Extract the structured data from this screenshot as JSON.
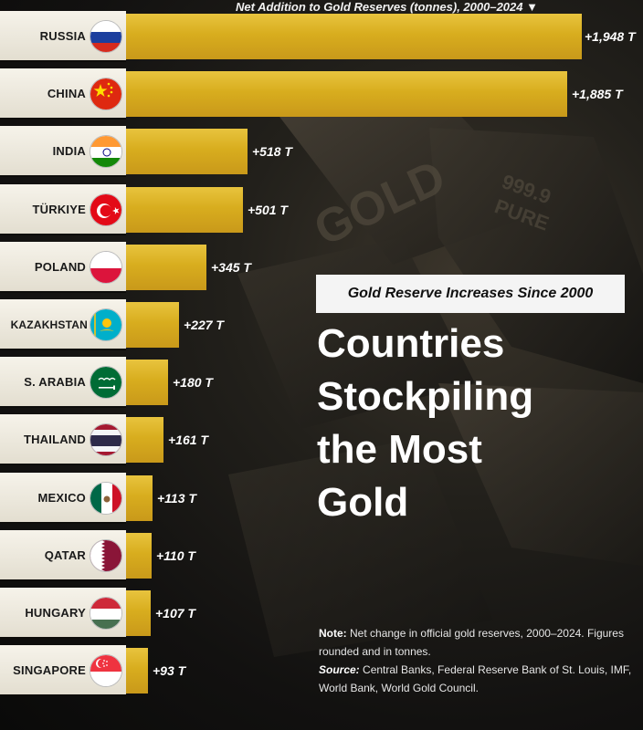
{
  "chart_data": {
    "type": "bar",
    "orientation": "horizontal",
    "title": "Countries Stockpiling the Most Gold",
    "title_lines": [
      "Countries",
      "Stockpiling",
      "the Most",
      "Gold"
    ],
    "subtitle": "Gold Reserve Increases Since 2000",
    "header": "Net Addition to Gold Reserves (tonnes), 2000–2024 ▼",
    "unit": "T",
    "xlim": [
      0,
      1948
    ],
    "categories": [
      "RUSSIA",
      "CHINA",
      "INDIA",
      "TÜRKIYE",
      "POLAND",
      "KAZAKHSTAN",
      "S. ARABIA",
      "THAILAND",
      "MEXICO",
      "QATAR",
      "HUNGARY",
      "SINGAPORE"
    ],
    "values": [
      1948,
      1885,
      518,
      501,
      345,
      227,
      180,
      161,
      113,
      110,
      107,
      93
    ],
    "value_labels": [
      "+1,948 T",
      "+1,885 T",
      "+518 T",
      "+501 T",
      "+345 T",
      "+227 T",
      "+180 T",
      "+161 T",
      "+113 T",
      "+110 T",
      "+107 T",
      "+93 T"
    ],
    "flags": [
      "russia-flag-icon",
      "china-flag-icon",
      "india-flag-icon",
      "turkiye-flag-icon",
      "poland-flag-icon",
      "kazakhstan-flag-icon",
      "saudi-arabia-flag-icon",
      "thailand-flag-icon",
      "mexico-flag-icon",
      "qatar-flag-icon",
      "hungary-flag-icon",
      "singapore-flag-icon"
    ],
    "note_label": "Note:",
    "note_text": " Net change in official gold reserves, 2000–2024. Figures rounded and in tonnes.",
    "source_label": "Source:",
    "source_text": " Central Banks, Federal Reserve Bank of St. Louis, IMF, World Bank, World Gold Council.",
    "background_text": [
      "GOLD",
      "999.9",
      "PURE"
    ]
  },
  "colors": {
    "bar": "#d8ad1e",
    "label_panel": "#f0ece1",
    "background": "#1a1815",
    "text": "#ffffff"
  }
}
